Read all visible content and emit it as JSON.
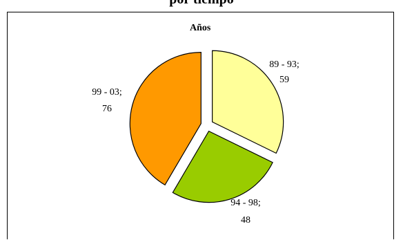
{
  "page": {
    "heading": "por tiempo"
  },
  "chart_data": {
    "type": "pie",
    "title": "Años",
    "categories": [
      "89 - 93",
      "94 - 98",
      "99 - 03"
    ],
    "values": [
      59,
      48,
      76
    ],
    "colors": [
      "#ffff99",
      "#99cc00",
      "#ff9900"
    ],
    "label_format": "category; value",
    "exploded": true,
    "legend": "none"
  }
}
